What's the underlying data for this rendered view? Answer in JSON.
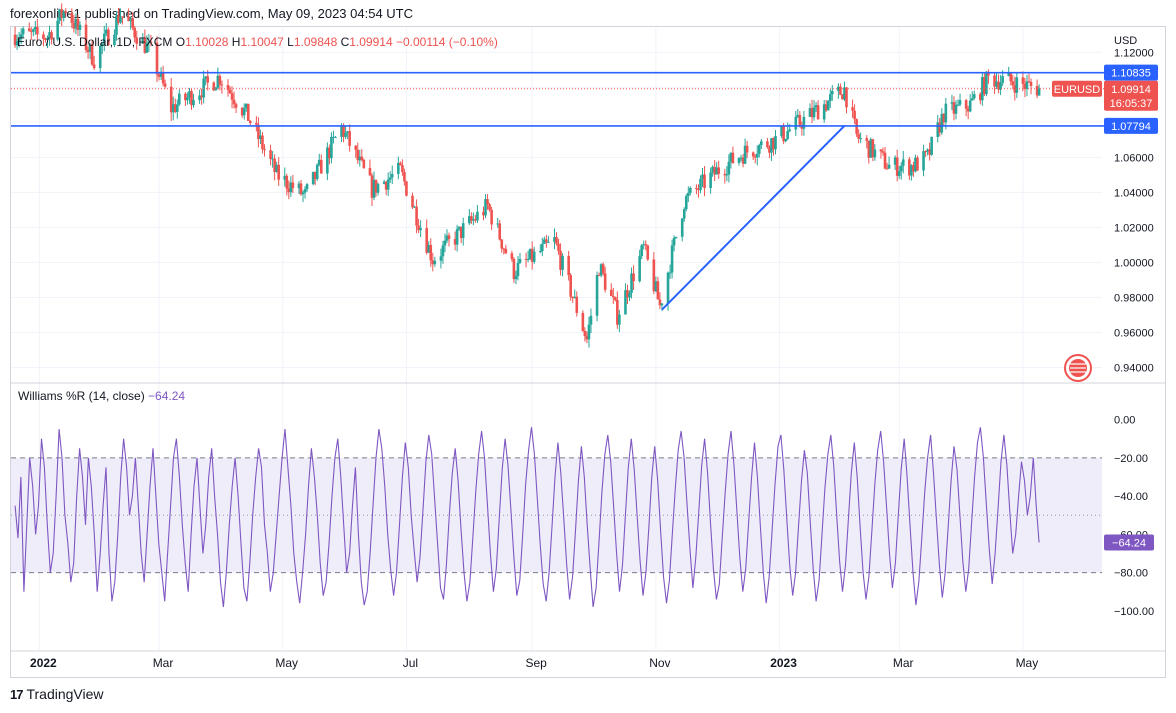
{
  "header": {
    "publisher_line": "forexonline1 published on TradingView.com, May 09, 2023 04:54 UTC"
  },
  "footer": {
    "brand": "TradingView",
    "logo_glyph": "17"
  },
  "colors": {
    "up": "#26a69a",
    "down": "#ef5350",
    "level_line": "#2962ff",
    "trend_line": "#2962ff",
    "wr_line": "#7e57c2",
    "wr_band": "#f0edfa",
    "price_tag": "#ef5350",
    "level_tag": "#2962ff"
  },
  "chart_data": [
    {
      "type": "candlestick",
      "symbol": "Euro / U.S. Dollar, 1D, FXCM",
      "ohlc_label": {
        "o_label": "O",
        "o": "1.10028",
        "h_label": "H",
        "h": "1.10047",
        "l_label": "L",
        "l": "1.09848",
        "c_label": "C",
        "c": "1.09914",
        "change": "−0.00114 (−0.10%)"
      },
      "currency": "USD",
      "y_ticks": [
        "1.12000",
        "1.10000",
        "1.08000",
        "1.06000",
        "1.04000",
        "1.02000",
        "1.00000",
        "0.98000",
        "0.96000",
        "0.94000"
      ],
      "y_tick_values": [
        1.12,
        1.1,
        1.08,
        1.06,
        1.04,
        1.02,
        1.0,
        0.98,
        0.96,
        0.94
      ],
      "ylim": [
        0.934,
        1.127
      ],
      "x_ticks": [
        "2022",
        "Mar",
        "May",
        "Jul",
        "Sep",
        "Nov",
        "2023",
        "Mar",
        "May"
      ],
      "x_tick_dates": [
        "2022-01-01",
        "2022-03-01",
        "2022-05-01",
        "2022-07-01",
        "2022-09-01",
        "2022-11-01",
        "2023-01-01",
        "2023-03-01",
        "2023-05-01"
      ],
      "xlim": [
        "2021-12-18",
        "2023-06-09"
      ],
      "horizontal_levels": [
        {
          "value": 1.10835,
          "label": "1.10835"
        },
        {
          "value": 1.07794,
          "label": "1.07794"
        }
      ],
      "current_price": {
        "value": 1.09914,
        "label": "1.09914",
        "symbol_tag": "EURUSD",
        "countdown": "16:05:37"
      },
      "trend_line": [
        {
          "date": "2022-11-04",
          "value": 0.973
        },
        {
          "date": "2023-02-02",
          "value": 1.078
        }
      ],
      "close_path": [
        [
          "2021-12-20",
          1.13
        ],
        [
          "2022-01-05",
          1.129
        ],
        [
          "2022-01-14",
          1.145
        ],
        [
          "2022-01-28",
          1.116
        ],
        [
          "2022-02-10",
          1.142
        ],
        [
          "2022-02-25",
          1.12
        ],
        [
          "2022-03-07",
          1.088
        ],
        [
          "2022-03-31",
          1.106
        ],
        [
          "2022-04-14",
          1.083
        ],
        [
          "2022-04-28",
          1.05
        ],
        [
          "2022-05-12",
          1.038
        ],
        [
          "2022-05-30",
          1.077
        ],
        [
          "2022-06-14",
          1.042
        ],
        [
          "2022-06-28",
          1.052
        ],
        [
          "2022-07-14",
          1.002
        ],
        [
          "2022-08-10",
          1.032
        ],
        [
          "2022-08-23",
          0.995
        ],
        [
          "2022-09-12",
          1.012
        ],
        [
          "2022-09-28",
          0.956
        ],
        [
          "2022-10-04",
          0.998
        ],
        [
          "2022-10-13",
          0.97
        ],
        [
          "2022-10-26",
          1.008
        ],
        [
          "2022-11-03",
          0.975
        ],
        [
          "2022-11-15",
          1.035
        ],
        [
          "2022-12-02",
          1.053
        ],
        [
          "2022-12-15",
          1.063
        ],
        [
          "2022-12-30",
          1.07
        ],
        [
          "2023-01-15",
          1.083
        ],
        [
          "2023-02-02",
          1.099
        ],
        [
          "2023-02-08",
          1.072
        ],
        [
          "2023-02-24",
          1.055
        ],
        [
          "2023-03-08",
          1.055
        ],
        [
          "2023-03-15",
          1.06
        ],
        [
          "2023-03-23",
          1.085
        ],
        [
          "2023-04-05",
          1.09
        ],
        [
          "2023-04-14",
          1.105
        ],
        [
          "2023-04-26",
          1.103
        ],
        [
          "2023-05-09",
          1.0991
        ]
      ]
    },
    {
      "type": "line",
      "title": "Williams %R (14, close)",
      "current_value": -64.24,
      "current_label": "−64.24",
      "y_ticks": [
        "0.00",
        "−20.00",
        "−40.00",
        "−60.00",
        "−80.00",
        "−100.00"
      ],
      "y_tick_values": [
        0,
        -20,
        -40,
        -60,
        -80,
        -100
      ],
      "ylim": [
        -110,
        5
      ],
      "overbought": -20,
      "midline": -50,
      "oversold": -80,
      "series": [
        {
          "values": [
            -45,
            -62,
            -30,
            -90,
            -55,
            -20,
            -35,
            -60,
            -45,
            -10,
            -25,
            -55,
            -80,
            -70,
            -40,
            -5,
            -20,
            -50,
            -65,
            -85,
            -75,
            -40,
            -15,
            -30,
            -55,
            -20,
            -35,
            -60,
            -90,
            -70,
            -45,
            -25,
            -70,
            -95,
            -85,
            -60,
            -30,
            -10,
            -25,
            -50,
            -40,
            -20,
            -45,
            -70,
            -85,
            -60,
            -35,
            -15,
            -40,
            -65,
            -80,
            -95,
            -70,
            -45,
            -20,
            -10,
            -30,
            -55,
            -75,
            -90,
            -60,
            -35,
            -20,
            -45,
            -70,
            -55,
            -30,
            -15,
            -40,
            -60,
            -85,
            -98,
            -80,
            -55,
            -35,
            -20,
            -40,
            -65,
            -88,
            -95,
            -75,
            -50,
            -30,
            -15,
            -25,
            -55,
            -70,
            -90,
            -80,
            -60,
            -40,
            -20,
            -5,
            -25,
            -45,
            -70,
            -85,
            -96,
            -80,
            -60,
            -35,
            -15,
            -30,
            -50,
            -75,
            -92,
            -85,
            -65,
            -40,
            -20,
            -10,
            -30,
            -55,
            -80,
            -70,
            -45,
            -25,
            -60,
            -85,
            -97,
            -90,
            -70,
            -45,
            -20,
            -5,
            -15,
            -35,
            -60,
            -78,
            -92,
            -80,
            -55,
            -30,
            -12,
            -25,
            -50,
            -68,
            -85,
            -72,
            -48,
            -22,
            -8,
            -18,
            -42,
            -65,
            -88,
            -94,
            -76,
            -50,
            -28,
            -15,
            -32,
            -58,
            -80,
            -95,
            -85,
            -62,
            -38,
            -18,
            -6,
            -20,
            -45,
            -70,
            -90,
            -78,
            -52,
            -26,
            -10,
            -24,
            -48,
            -72,
            -92,
            -84,
            -60,
            -34,
            -16,
            -4,
            -18,
            -42,
            -66,
            -86,
            -95,
            -80,
            -56,
            -30,
            -12,
            -28,
            -52,
            -76,
            -94,
            -82,
            -58,
            -32,
            -14,
            -30,
            -55,
            -78,
            -98,
            -88,
            -64,
            -38,
            -18,
            -8,
            -22,
            -46,
            -70,
            -90,
            -76,
            -50,
            -25,
            -10,
            -26,
            -50,
            -74,
            -92,
            -80,
            -56,
            -30,
            -14,
            -32,
            -58,
            -82,
            -96,
            -84,
            -60,
            -36,
            -16,
            -6,
            -20,
            -44,
            -68,
            -88,
            -72,
            -48,
            -24,
            -10,
            -28,
            -54,
            -78,
            -94,
            -86,
            -62,
            -38,
            -18,
            -6,
            -24,
            -48,
            -72,
            -90,
            -78,
            -54,
            -30,
            -12,
            -30,
            -56,
            -80,
            -96,
            -82,
            -58,
            -34,
            -14,
            -8,
            -26,
            -52,
            -76,
            -92,
            -80,
            -56,
            -32,
            -16,
            -28,
            -54,
            -78,
            -95,
            -84,
            -60,
            -36,
            -18,
            -8,
            -24,
            -50,
            -74,
            -90,
            -76,
            -52,
            -28,
            -12,
            -30,
            -56,
            -80,
            -94,
            -82,
            -58,
            -34,
            -16,
            -6,
            -22,
            -46,
            -70,
            -88,
            -75,
            -50,
            -26,
            -10,
            -30,
            -55,
            -80,
            -97,
            -85,
            -62,
            -38,
            -20,
            -8,
            -28,
            -52,
            -76,
            -93,
            -80,
            -56,
            -32,
            -14,
            -26,
            -50,
            -74,
            -90,
            -78,
            -54,
            -30,
            -12,
            -4,
            -20,
            -44,
            -68,
            -86,
            -70,
            -46,
            -22,
            -8,
            -24,
            -48,
            -70,
            -60,
            -40,
            -22,
            -32,
            -50,
            -40,
            -20,
            -45,
            -64.24
          ]
        }
      ]
    }
  ]
}
